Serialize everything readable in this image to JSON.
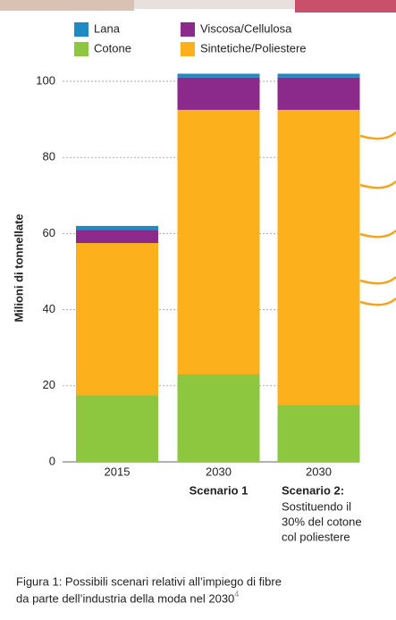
{
  "chart_data": {
    "type": "stacked_bar",
    "y_label": "Milioni di tonnellate",
    "categories": [
      "2015",
      "2030",
      "2030"
    ],
    "scenarios": [
      null,
      {
        "title": "Scenario 1"
      },
      {
        "title": "Scenario 2:",
        "lines": [
          "Sostituendo il",
          "30% del cotone",
          "col poliestere"
        ]
      }
    ],
    "series": [
      {
        "name": "Cotone",
        "color": "#8dc63f",
        "values": [
          17.5,
          23,
          15
        ]
      },
      {
        "name": "Sintetiche/Poliestere",
        "color": "#fbb01c",
        "values": [
          40,
          69.5,
          77.5
        ]
      },
      {
        "name": "Viscosa/Cellulosa",
        "color": "#8b2a8b",
        "values": [
          3.5,
          8.5,
          8.5
        ]
      },
      {
        "name": "Lana",
        "color": "#1e8bc3",
        "values": [
          1,
          1,
          1
        ]
      }
    ],
    "ylim": [
      0,
      102
    ],
    "yticks": [
      0,
      20,
      40,
      60,
      80,
      100
    ],
    "grid": true,
    "caption_lines": [
      "Figura 1: Possibili scenari relativi all’impiego di fibre",
      "da parte dell’industria della moda nel 2030"
    ],
    "caption_ref": "4"
  }
}
